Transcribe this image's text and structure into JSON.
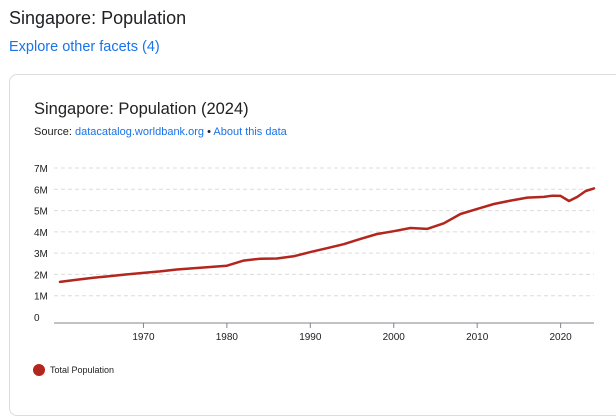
{
  "page": {
    "heading": "Singapore: Population",
    "facets_link": "Explore other facets (4)"
  },
  "card": {
    "title": "Singapore: Population (2024)",
    "source_label": "Source:",
    "source_link": "datacatalog.worldbank.org",
    "separator": "•",
    "about_link": "About this data"
  },
  "colors": {
    "series": "#b3261e",
    "grid": "#dadce0",
    "axis": "#80868b",
    "link": "#1a73e8"
  },
  "chart_data": {
    "type": "line",
    "title": "Singapore: Population (2024)",
    "xlabel": "",
    "ylabel": "",
    "xlim": [
      1960,
      2024
    ],
    "ylim": [
      0,
      7000000
    ],
    "xticks": [
      1970,
      1980,
      1990,
      2000,
      2010,
      2020
    ],
    "yticks": [
      {
        "value": 0,
        "label": "0"
      },
      {
        "value": 1000000,
        "label": "1M"
      },
      {
        "value": 2000000,
        "label": "2M"
      },
      {
        "value": 3000000,
        "label": "3M"
      },
      {
        "value": 4000000,
        "label": "4M"
      },
      {
        "value": 5000000,
        "label": "5M"
      },
      {
        "value": 6000000,
        "label": "6M"
      },
      {
        "value": 7000000,
        "label": "7M"
      }
    ],
    "legend_position": "bottom-left",
    "series": [
      {
        "name": "Total Population",
        "x": [
          1960,
          1962,
          1964,
          1966,
          1968,
          1970,
          1972,
          1974,
          1976,
          1978,
          1980,
          1982,
          1984,
          1986,
          1988,
          1990,
          1992,
          1994,
          1996,
          1998,
          2000,
          2002,
          2004,
          2006,
          2008,
          2010,
          2012,
          2014,
          2016,
          2018,
          2019,
          2020,
          2021,
          2022,
          2023,
          2024
        ],
        "values": [
          1650000,
          1750000,
          1840000,
          1920000,
          2000000,
          2070000,
          2140000,
          2230000,
          2290000,
          2350000,
          2410000,
          2650000,
          2740000,
          2750000,
          2850000,
          3050000,
          3230000,
          3420000,
          3670000,
          3900000,
          4030000,
          4180000,
          4140000,
          4400000,
          4840000,
          5080000,
          5310000,
          5470000,
          5610000,
          5640000,
          5700000,
          5690000,
          5450000,
          5640000,
          5920000,
          6040000
        ]
      }
    ]
  }
}
